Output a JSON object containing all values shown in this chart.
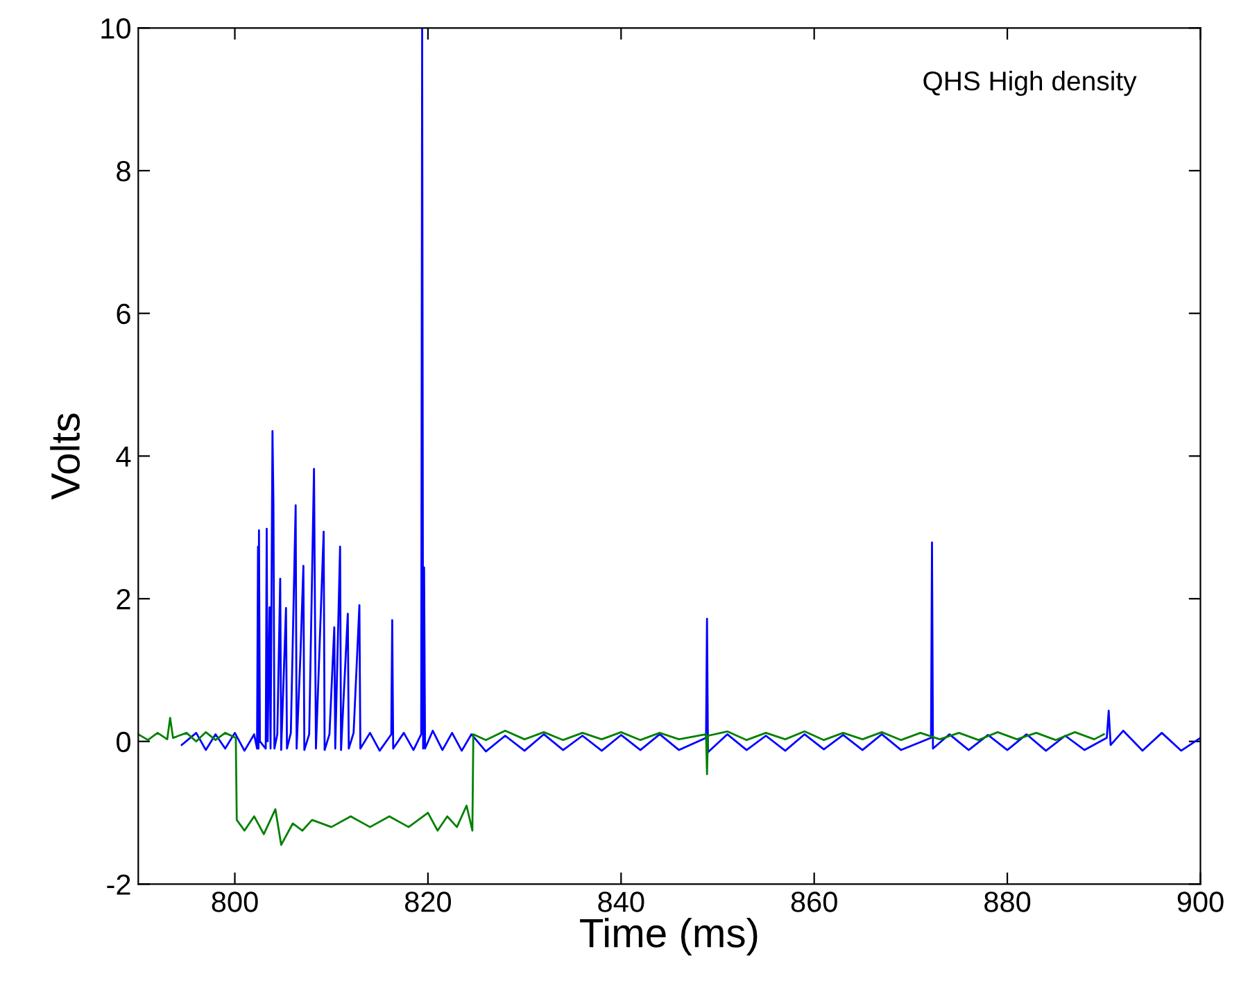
{
  "chart_data": {
    "type": "line",
    "xlabel": "Time (ms)",
    "ylabel": "Volts",
    "annotations": [
      "QHS High density"
    ],
    "xlim": [
      790,
      900
    ],
    "xticks": [
      800,
      820,
      840,
      860,
      880,
      900
    ],
    "ylim": [
      -2,
      10
    ],
    "yticks": [
      -2,
      0,
      2,
      4,
      6,
      8,
      10
    ],
    "grid": false,
    "legend": false,
    "marker": "none",
    "line_style": "solid",
    "series": [
      {
        "color": "#0000ff",
        "x": [
          794.5,
          796,
          797,
          798,
          799,
          800,
          801,
          802,
          802.3,
          802.4,
          802.45,
          802.5,
          802.6,
          803.2,
          803.3,
          803.4,
          803.6,
          803.7,
          803.9,
          804.0,
          804.1,
          804.4,
          804.7,
          804.8,
          805.3,
          805.4,
          805.8,
          806.3,
          806.4,
          806.8,
          807.1,
          807.2,
          807.7,
          808.2,
          808.3,
          808.4,
          809.2,
          809.3,
          809.8,
          810.3,
          810.4,
          810.9,
          811.0,
          811.7,
          811.8,
          812.3,
          812.9,
          813.0,
          814,
          815,
          816.2,
          816.3,
          816.4,
          817.5,
          818.5,
          819.3,
          819.4,
          819.5,
          819.6,
          819.7,
          820.5,
          821.5,
          822.5,
          823.5,
          824.5,
          826,
          828,
          830,
          832,
          834,
          836,
          838,
          840,
          842,
          844,
          846,
          848.8,
          848.9,
          849.0,
          851,
          853,
          855,
          857,
          859,
          861,
          863,
          865,
          867,
          869,
          872.1,
          872.2,
          872.3,
          874,
          876,
          878,
          880,
          882,
          884,
          886,
          888,
          890.3,
          890.5,
          890.7,
          892,
          894,
          896,
          898,
          900
        ],
        "values": [
          -0.05,
          0.12,
          -0.12,
          0.1,
          -0.1,
          0.12,
          -0.13,
          0.1,
          -0.1,
          2.73,
          -0.1,
          2.96,
          0.0,
          -0.1,
          2.98,
          0.0,
          1.88,
          -0.1,
          4.35,
          3.31,
          -0.1,
          0.1,
          2.28,
          -0.12,
          1.87,
          -0.1,
          0.12,
          3.31,
          -0.1,
          1.23,
          2.46,
          -0.12,
          0.1,
          3.82,
          1.81,
          -0.1,
          2.94,
          -0.12,
          0.1,
          1.6,
          -0.1,
          2.73,
          -0.12,
          1.79,
          -0.1,
          0.12,
          1.91,
          -0.1,
          0.12,
          -0.13,
          0.1,
          1.7,
          -0.1,
          0.12,
          -0.12,
          0.1,
          10,
          -0.1,
          2.44,
          -0.1,
          0.15,
          -0.12,
          0.12,
          -0.13,
          0.1,
          -0.14,
          0.08,
          -0.13,
          0.1,
          -0.12,
          0.08,
          -0.13,
          0.09,
          -0.12,
          0.1,
          -0.12,
          0.05,
          1.72,
          -0.15,
          0.1,
          -0.12,
          0.08,
          -0.13,
          0.1,
          -0.11,
          0.09,
          -0.12,
          0.1,
          -0.12,
          0.05,
          2.79,
          -0.1,
          0.1,
          -0.12,
          0.09,
          -0.12,
          0.1,
          -0.13,
          0.08,
          -0.12,
          0.05,
          0.43,
          -0.05,
          0.15,
          -0.13,
          0.12,
          -0.13,
          0.05
        ]
      },
      {
        "color": "#008000",
        "x": [
          790,
          791,
          792,
          793,
          793.3,
          793.6,
          795,
          796,
          797,
          798,
          799,
          800.1,
          800.2,
          801,
          802,
          803,
          804.2,
          804.8,
          806,
          807,
          808,
          810,
          812,
          814,
          816,
          818,
          820,
          821,
          822,
          823,
          824,
          824.6,
          824.7,
          826,
          828,
          830,
          832,
          834,
          836,
          838,
          840,
          842,
          844,
          846,
          848.8,
          848.9,
          849.0,
          851,
          853,
          855,
          857,
          859,
          861,
          863,
          865,
          867,
          869,
          871,
          873,
          875,
          877,
          879,
          881,
          883,
          885,
          887,
          889,
          890.0
        ],
        "values": [
          0.1,
          0.02,
          0.12,
          0.03,
          0.33,
          0.05,
          0.12,
          0.0,
          0.13,
          0.02,
          0.12,
          0.05,
          -1.1,
          -1.25,
          -1.05,
          -1.3,
          -0.95,
          -1.45,
          -1.15,
          -1.25,
          -1.1,
          -1.2,
          -1.05,
          -1.2,
          -1.05,
          -1.2,
          -1.0,
          -1.25,
          -1.05,
          -1.2,
          -0.9,
          -1.25,
          0.1,
          0.02,
          0.15,
          0.03,
          0.13,
          0.02,
          0.12,
          0.03,
          0.13,
          0.02,
          0.12,
          0.03,
          0.1,
          -0.46,
          0.08,
          0.14,
          0.02,
          0.12,
          0.03,
          0.14,
          0.02,
          0.12,
          0.03,
          0.13,
          0.02,
          0.12,
          0.03,
          0.12,
          0.02,
          0.13,
          0.03,
          0.12,
          0.02,
          0.13,
          0.03,
          0.1
        ]
      }
    ]
  }
}
